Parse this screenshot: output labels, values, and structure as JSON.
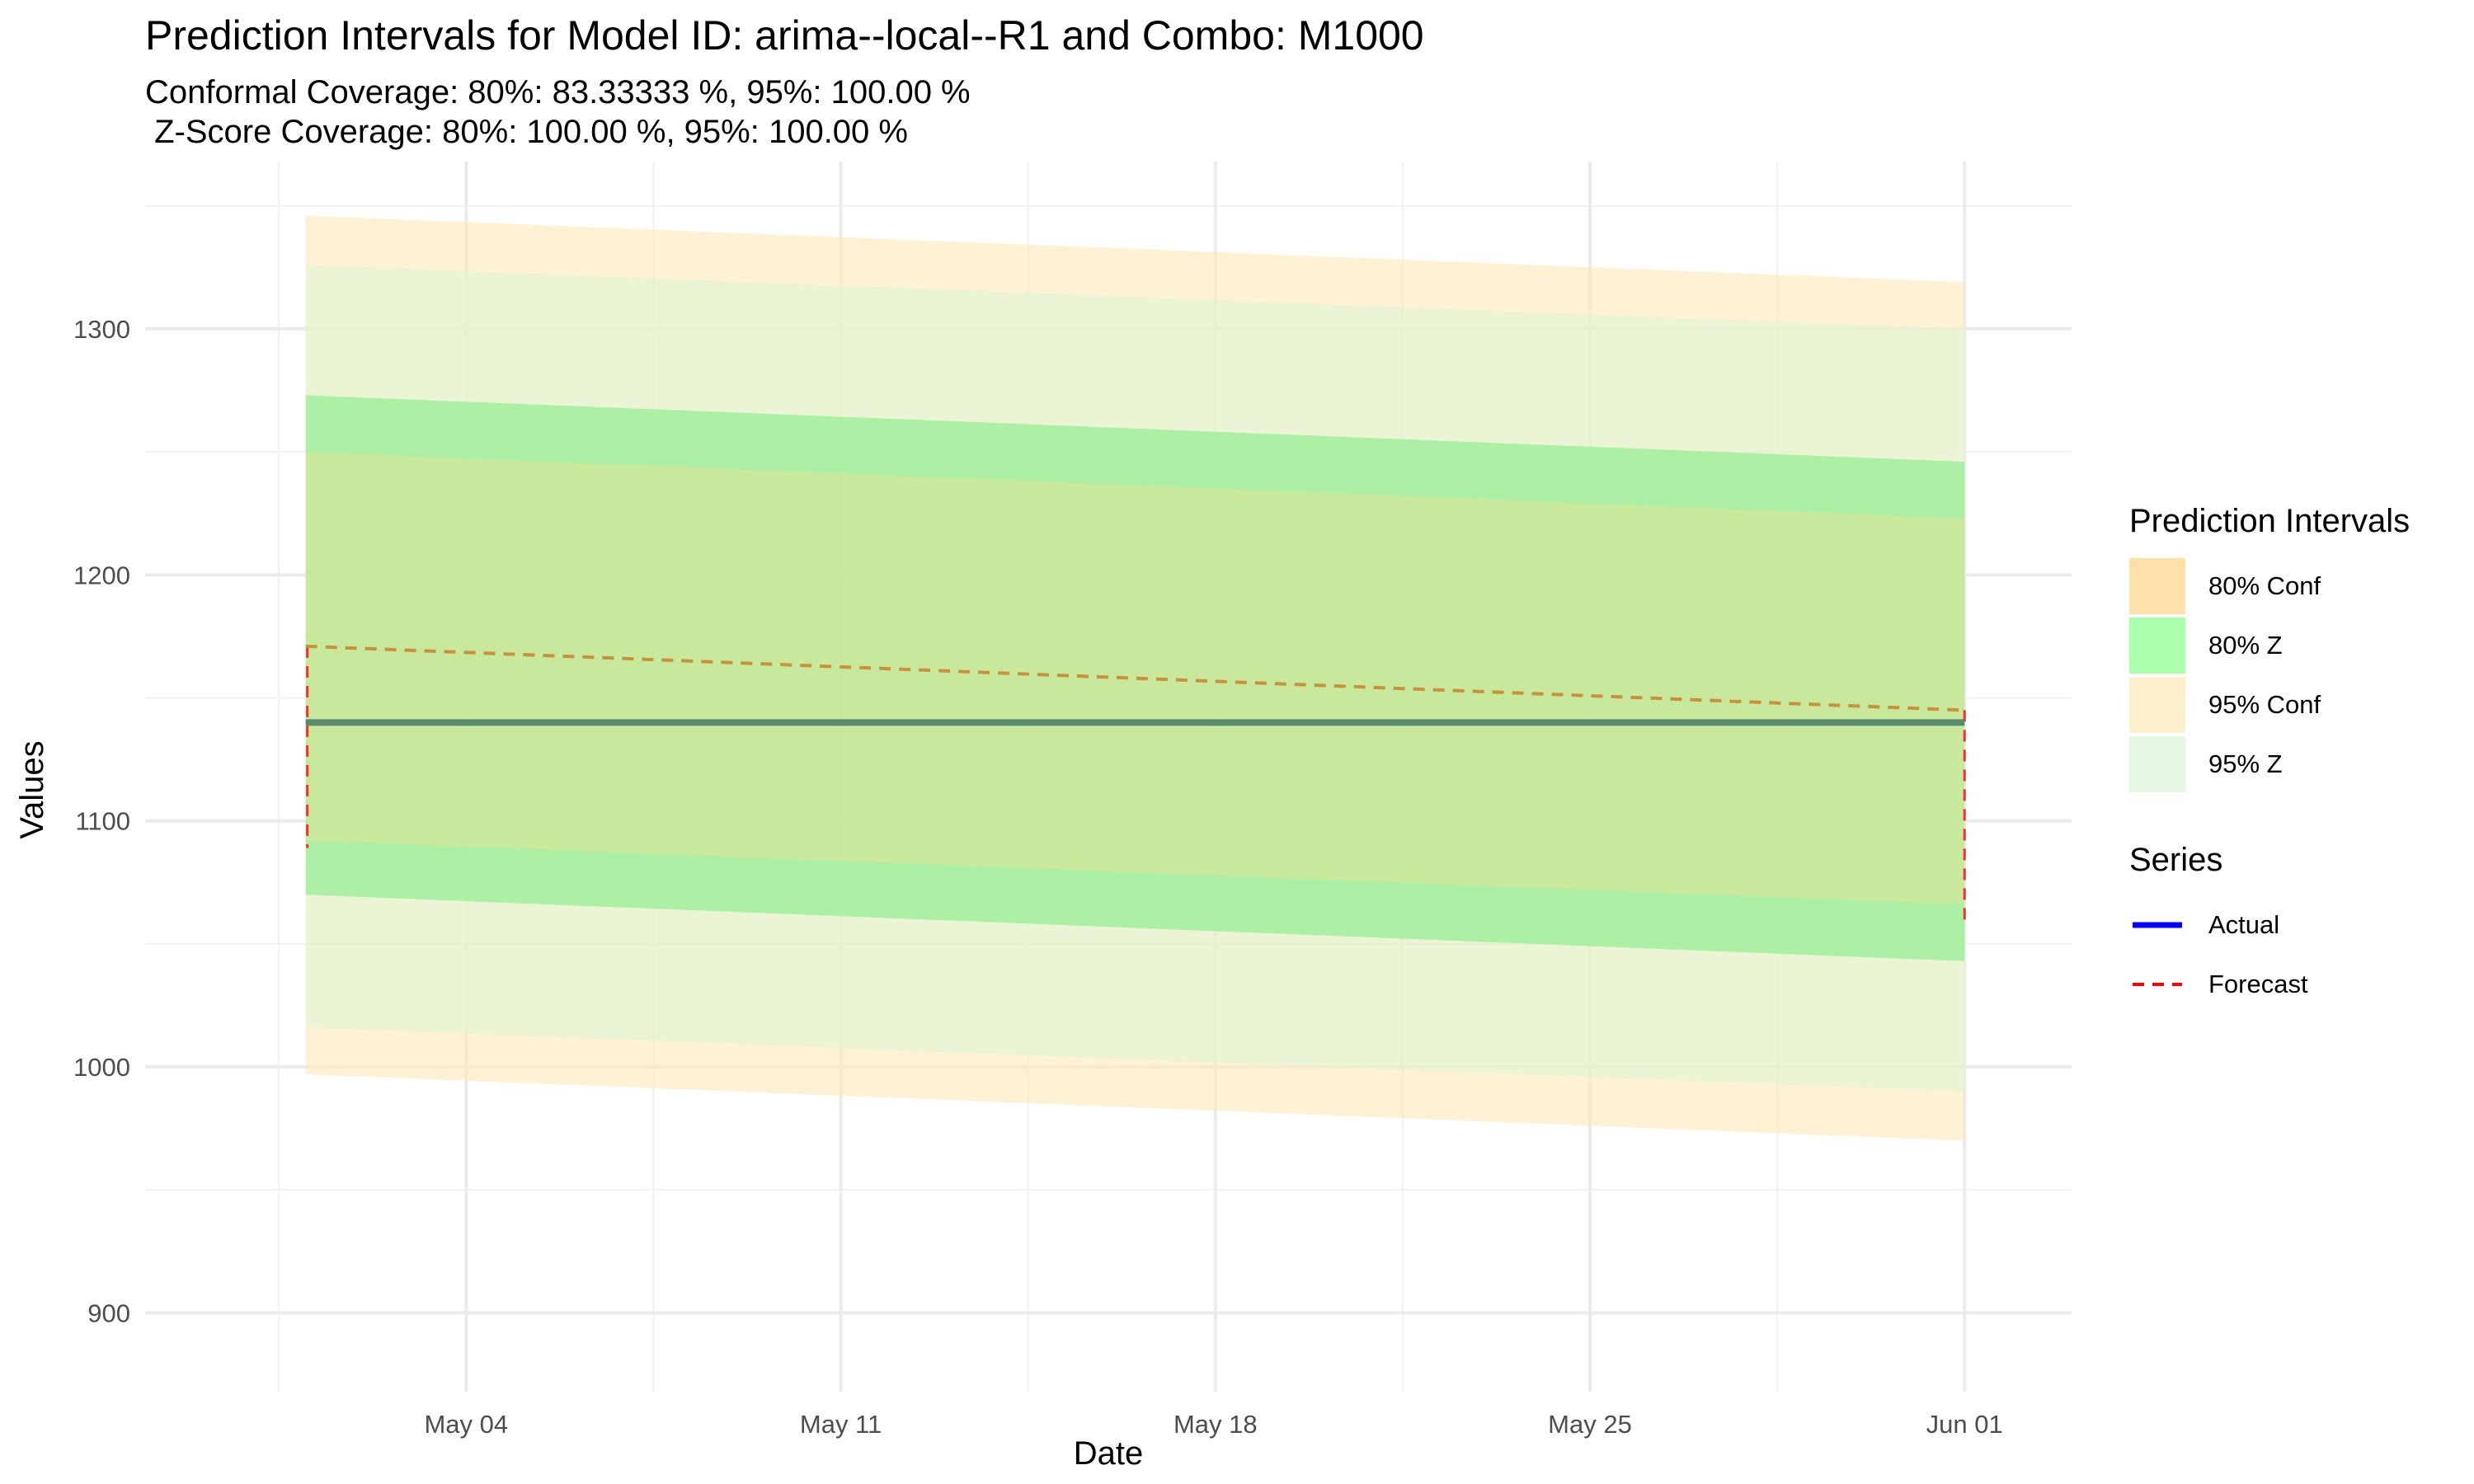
{
  "chart_data": {
    "type": "area",
    "title": "Prediction Intervals for Model ID: arima--local--R1 and Combo: M1000",
    "subtitle": "Conformal Coverage: 80%: 83.33333 %, 95%: 100.00 %\n Z-Score Coverage: 80%: 100.00 %, 95%: 100.00 %",
    "xlabel": "Date",
    "ylabel": "Values",
    "x_range": [
      "2024-04-28",
      "2024-06-03"
    ],
    "ylim": [
      868,
      1368
    ],
    "x_ticks": [
      {
        "date": "2024-05-04",
        "label": "May 04"
      },
      {
        "date": "2024-05-11",
        "label": "May 11"
      },
      {
        "date": "2024-05-18",
        "label": "May 18"
      },
      {
        "date": "2024-05-25",
        "label": "May 25"
      },
      {
        "date": "2024-06-01",
        "label": "Jun 01"
      }
    ],
    "y_ticks": [
      900,
      1000,
      1100,
      1200,
      1300
    ],
    "grid": true,
    "legend_position": "right",
    "x": [
      "2024-05-01",
      "2024-06-01"
    ],
    "series": [
      {
        "name": "95% Conf",
        "kind": "band",
        "lower": [
          997,
          970
        ],
        "upper": [
          1346,
          1319
        ],
        "color": "#ffe9b8",
        "opacity": 0.6
      },
      {
        "name": "95% Z",
        "kind": "band",
        "lower": [
          1016,
          990
        ],
        "upper": [
          1326,
          1300
        ],
        "color": "#d8f5d3",
        "opacity": 0.5
      },
      {
        "name": "80% Z",
        "kind": "band",
        "lower": [
          1070,
          1043
        ],
        "upper": [
          1273,
          1246
        ],
        "color": "#90ee90",
        "opacity": 0.7
      },
      {
        "name": "80% Conf",
        "kind": "band",
        "lower": [
          1092,
          1066
        ],
        "upper": [
          1250,
          1223
        ],
        "color": "#ffd990",
        "opacity": 0.35
      },
      {
        "name": "Actual",
        "kind": "line",
        "values": [
          1140,
          1140
        ],
        "color": "#0000ff",
        "display_color": "#5b8b6f"
      },
      {
        "name": "Forecast",
        "kind": "dashed",
        "values": [
          1171,
          1145
        ],
        "color": "#ff0000",
        "display_color": "#c8923c"
      }
    ],
    "legend": {
      "intervals_title": "Prediction Intervals",
      "intervals": [
        {
          "label": "80% Conf",
          "color": "#ffe0a8"
        },
        {
          "label": "80% Z",
          "color": "#aaffaa"
        },
        {
          "label": "95% Conf",
          "color": "#fff0cc"
        },
        {
          "label": "95% Z",
          "color": "#e6f8e2"
        }
      ],
      "series_title": "Series",
      "series": [
        {
          "label": "Actual",
          "color": "#0000ff",
          "dash": false
        },
        {
          "label": "Forecast",
          "color": "#ff0000",
          "dash": true
        }
      ]
    }
  }
}
